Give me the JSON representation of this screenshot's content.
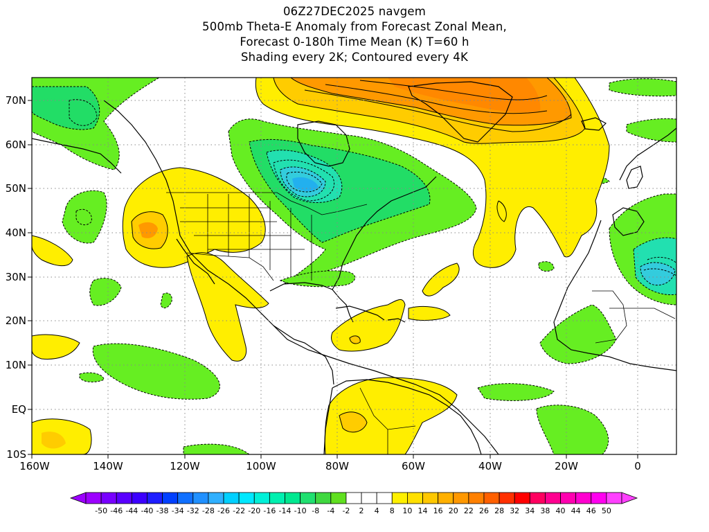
{
  "header": {
    "line1": "06Z27DEC2025 navgem",
    "line2": "500mb Theta-E Anomaly from Forecast Zonal Mean,",
    "line3": "Forecast 0-180h Time Mean (K) T=60 h",
    "line4": "Shading every 2K; Contoured every 4K"
  },
  "axes": {
    "lon_labels": [
      "160W",
      "140W",
      "120W",
      "100W",
      "80W",
      "60W",
      "40W",
      "20W",
      "0"
    ],
    "lat_labels": [
      "70N",
      "60N",
      "50N",
      "40N",
      "30N",
      "20N",
      "10N",
      "EQ",
      "10S"
    ]
  },
  "colorbar": {
    "labels": [
      "-50",
      "-46",
      "-44",
      "-40",
      "-38",
      "-34",
      "-32",
      "-28",
      "-26",
      "-22",
      "-20",
      "-16",
      "-14",
      "-10",
      "-8",
      "-4",
      "-2",
      "2",
      "4",
      "8",
      "10",
      "14",
      "16",
      "20",
      "22",
      "26",
      "28",
      "32",
      "34",
      "38",
      "40",
      "44",
      "46",
      "50"
    ],
    "colors": [
      "#9c00ff",
      "#7800ff",
      "#5a00ff",
      "#3c00ff",
      "#1e1eff",
      "#0040ff",
      "#1070ff",
      "#2090ff",
      "#30b0ff",
      "#00d0ff",
      "#00e8ff",
      "#00f0d8",
      "#00f0b0",
      "#00e890",
      "#20e070",
      "#40d840",
      "#60e020",
      "#ffffff",
      "#ffffff",
      "#ffffff",
      "#fff000",
      "#ffe000",
      "#ffc800",
      "#ffb000",
      "#ff9800",
      "#ff8000",
      "#ff6000",
      "#ff3000",
      "#ff0000",
      "#ff0060",
      "#ff0090",
      "#ff00b0",
      "#ff00d0",
      "#ff00f0",
      "#ff40ff"
    ]
  },
  "palette": {
    "green": "#66ee22",
    "mid_green": "#22dd66",
    "teal": "#22e0b0",
    "cyan": "#33ccdd",
    "light_blue": "#22b0ee",
    "yellow": "#ffee00",
    "gold": "#ffcc00",
    "orange": "#ff9900",
    "deep_orange": "#ff8800",
    "land": "#000000",
    "grid": "#888888"
  }
}
